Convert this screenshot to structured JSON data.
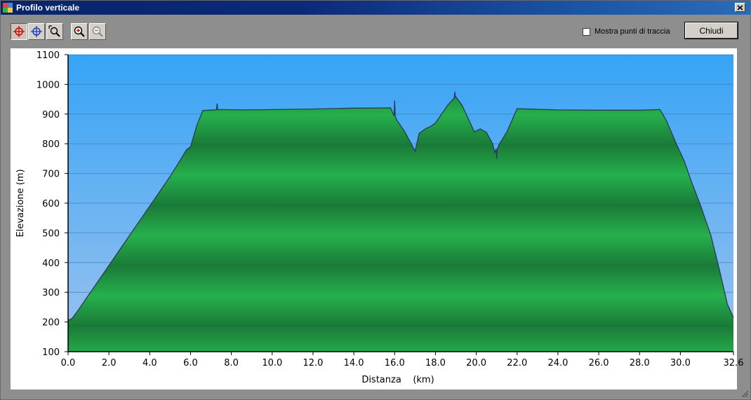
{
  "window": {
    "title": "Profilo verticale",
    "close_glyph": "✕"
  },
  "toolbar": {
    "tools": [
      {
        "icon": "crosshair-red-icon",
        "pressed": true
      },
      {
        "icon": "crosshair-blue-icon",
        "pressed": false
      },
      {
        "icon": "zoom-window-icon",
        "pressed": false
      },
      {
        "icon": "zoom-in-icon",
        "pressed": false
      },
      {
        "icon": "zoom-out-icon",
        "pressed": false
      }
    ],
    "show_points_label": "Mostra punti di traccia",
    "show_points_checked": false,
    "close_label": "Chiudi"
  },
  "colors": {
    "sky_top": "#36a4f6",
    "sky_bottom": "#9cc2ee",
    "terrain_light": "#26b04c",
    "terrain_dark": "#1a7a38",
    "terrain_outline": "#2a3a55",
    "titlebar": "#0a2a78"
  },
  "chart_data": {
    "type": "area",
    "xlabel": "Distanza    (km)",
    "ylabel": "Elevazione (m)",
    "xlim": [
      0,
      32.6
    ],
    "ylim": [
      100,
      1100
    ],
    "x_ticks": [
      "0.0",
      "2.0",
      "4.0",
      "6.0",
      "8.0",
      "10.0",
      "12.0",
      "14.0",
      "16.0",
      "18.0",
      "20.0",
      "22.0",
      "24.0",
      "26.0",
      "28.0",
      "30.0",
      "32.6"
    ],
    "y_ticks": [
      "100",
      "200",
      "300",
      "400",
      "500",
      "600",
      "700",
      "800",
      "900",
      "1000",
      "1100"
    ],
    "grid": true,
    "x": [
      0.0,
      0.2,
      0.5,
      1.0,
      1.5,
      2.0,
      2.5,
      3.0,
      3.5,
      4.0,
      4.5,
      5.0,
      5.5,
      5.8,
      6.0,
      6.3,
      6.6,
      7.5,
      8.5,
      10.0,
      12.0,
      14.0,
      15.0,
      15.8,
      16.1,
      16.5,
      17.0,
      17.2,
      17.5,
      17.8,
      18.0,
      18.3,
      18.6,
      19.0,
      19.3,
      19.6,
      19.9,
      20.2,
      20.5,
      20.8,
      20.9,
      21.1,
      21.5,
      22.0,
      23.0,
      24.0,
      26.0,
      28.0,
      29.0,
      29.3,
      29.8,
      30.2,
      30.5,
      31.0,
      31.5,
      31.9,
      32.3,
      32.6
    ],
    "y": [
      205,
      212,
      240,
      290,
      340,
      390,
      440,
      490,
      540,
      590,
      640,
      690,
      745,
      780,
      790,
      860,
      912,
      915,
      914,
      915,
      917,
      920,
      920,
      921,
      880,
      840,
      775,
      835,
      850,
      860,
      870,
      900,
      930,
      958,
      930,
      885,
      840,
      850,
      838,
      800,
      770,
      795,
      840,
      918,
      916,
      914,
      913,
      913,
      915,
      880,
      800,
      740,
      680,
      590,
      490,
      380,
      260,
      215
    ],
    "spikes": [
      [
        7.3,
        935
      ],
      [
        16.0,
        945
      ],
      [
        18.95,
        975
      ],
      [
        21.0,
        750
      ]
    ]
  }
}
